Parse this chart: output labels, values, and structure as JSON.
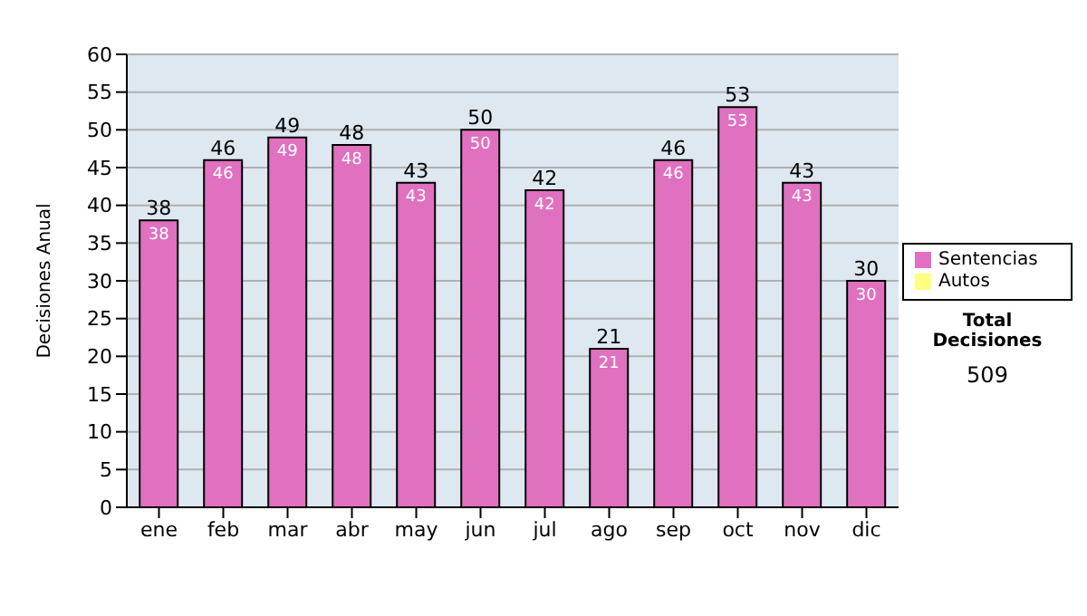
{
  "chart_data": {
    "type": "bar",
    "ylabel": "Decisiones Anual",
    "categories": [
      "ene",
      "feb",
      "mar",
      "abr",
      "may",
      "jun",
      "jul",
      "ago",
      "sep",
      "oct",
      "nov",
      "dic"
    ],
    "series": [
      {
        "name": "Sentencias",
        "color": "#e070c0",
        "values": [
          38,
          46,
          49,
          48,
          43,
          50,
          42,
          21,
          46,
          53,
          43,
          30
        ]
      },
      {
        "name": "Autos",
        "color": "#ffff80",
        "values": [
          null,
          null,
          null,
          null,
          null,
          null,
          null,
          null,
          null,
          null,
          null,
          null
        ]
      }
    ],
    "stacked": true,
    "data_labels": true,
    "totals": [
      "38",
      "46",
      "49",
      "48",
      "43",
      "50",
      "42",
      "21",
      "46",
      "53",
      "43",
      "30"
    ],
    "ylim": [
      0,
      60
    ],
    "yticks": [
      0,
      5,
      10,
      15,
      20,
      25,
      30,
      35,
      40,
      45,
      50,
      55,
      60
    ],
    "grid": "y",
    "legend": "right",
    "annotations": [
      "Total Decisiones",
      "509"
    ]
  }
}
